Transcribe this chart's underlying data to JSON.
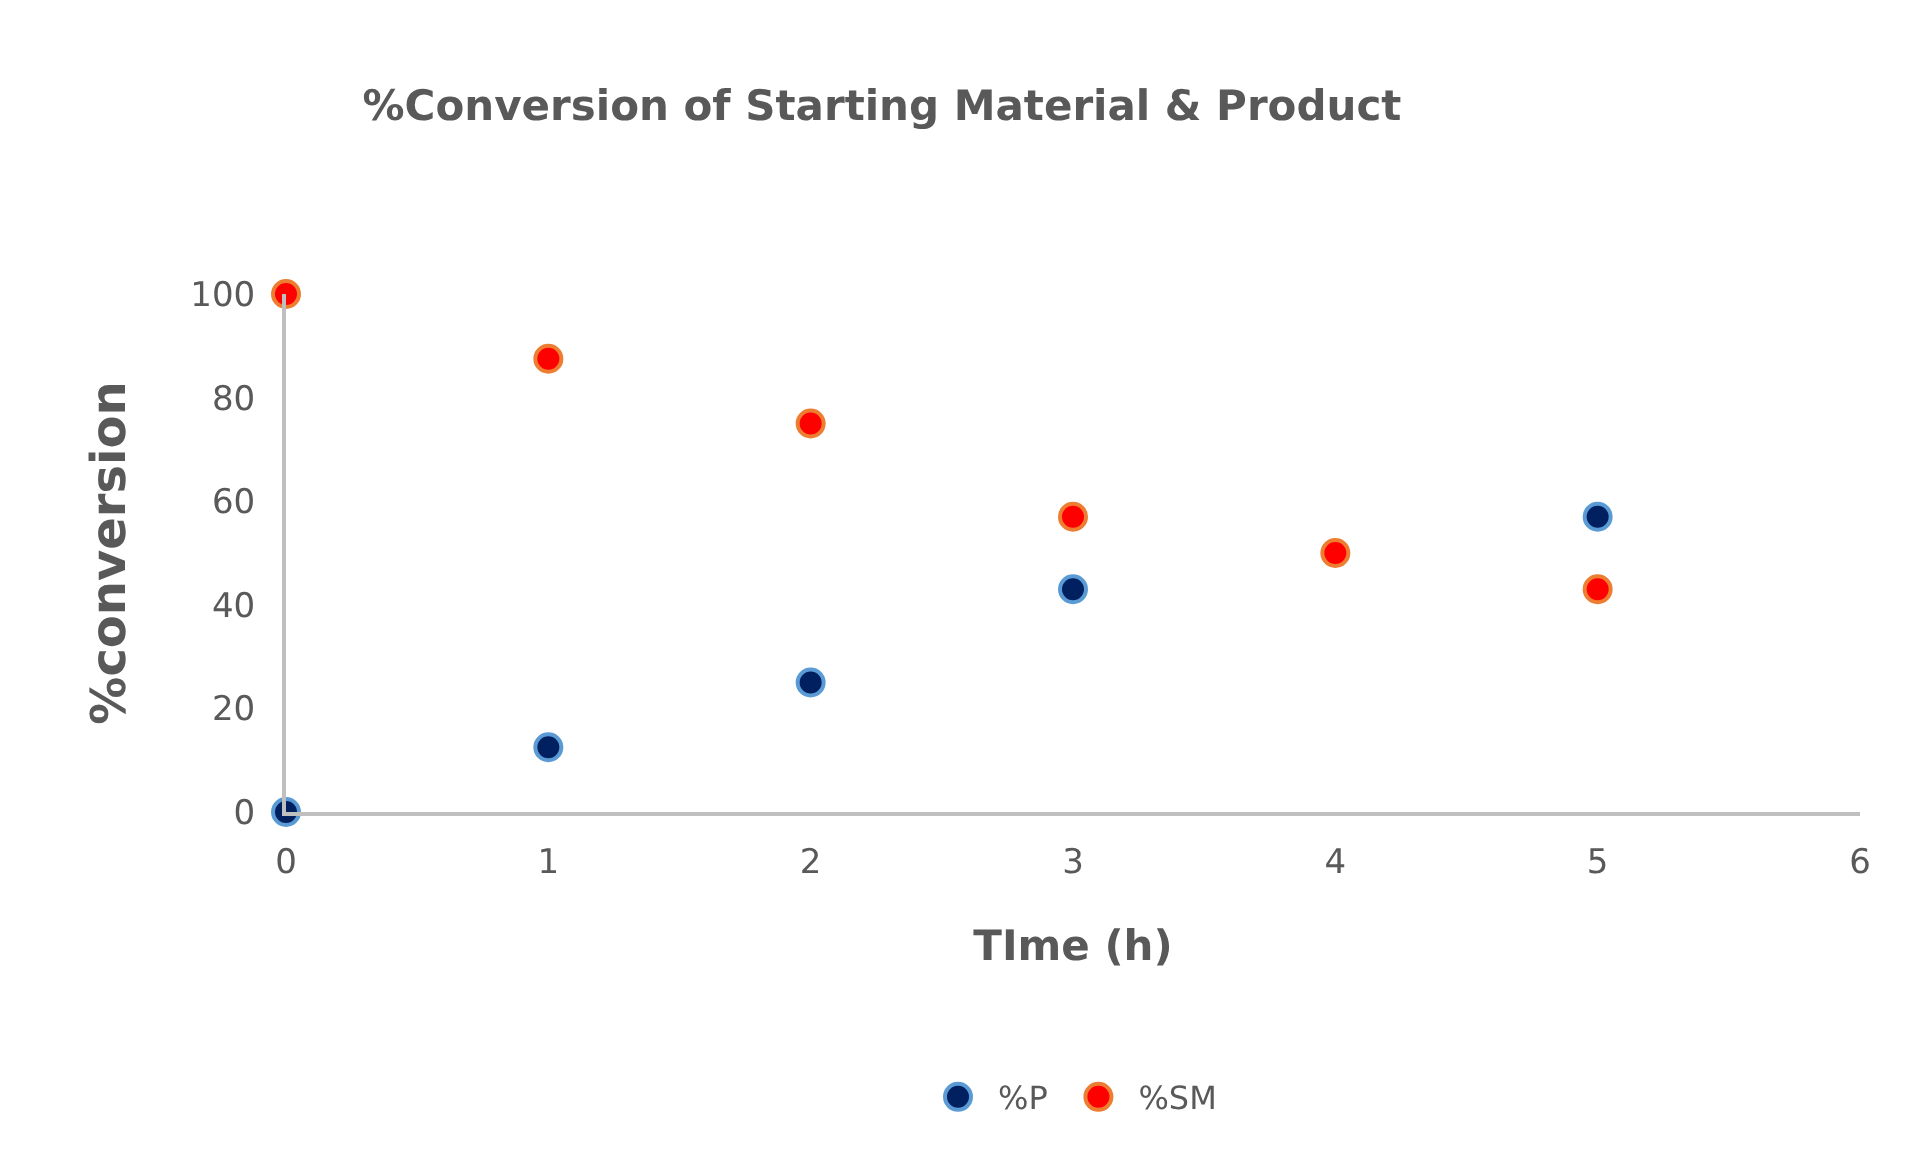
{
  "chart_data": {
    "type": "scatter",
    "title": "%Conversion of Starting Material & Product",
    "xlabel": "TIme (h)",
    "ylabel": "%conversion",
    "x": [
      0,
      1,
      2,
      3,
      4,
      5
    ],
    "series": [
      {
        "name": "%P",
        "color": "#002060",
        "values": [
          0,
          12.5,
          25,
          43,
          null,
          57
        ]
      },
      {
        "name": "%SM",
        "color": "#ff0000",
        "values": [
          100,
          87.5,
          75,
          57,
          50,
          43
        ]
      }
    ],
    "xlim": [
      0,
      6
    ],
    "xticks": [
      0,
      1,
      2,
      3,
      4,
      5,
      6
    ],
    "ylim": [
      0,
      100
    ],
    "yticks": [
      0,
      20,
      40,
      60,
      80,
      100
    ],
    "legend": "bottom",
    "marker": "circle"
  }
}
